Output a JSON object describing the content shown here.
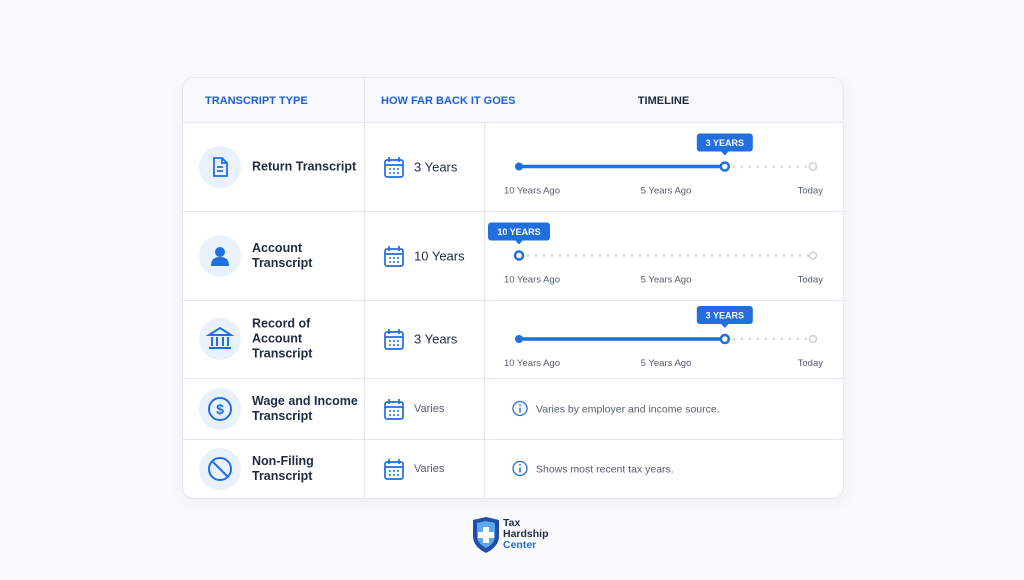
{
  "header": {
    "columns": [
      "TRANSCRIPT TYPE",
      "HOW FAR BACK IT GOES",
      "TIMELINE"
    ]
  },
  "timeline_scale": {
    "ticks": [
      {
        "value": 10,
        "label": "10 Years Ago"
      },
      {
        "value": 5,
        "label": "5 Years Ago"
      },
      {
        "value": 0,
        "label": "Today"
      }
    ]
  },
  "rows": [
    {
      "type": "Return Transcript",
      "period": "3 Years",
      "timeline": {
        "years": 3,
        "value_label": "3 YEARS"
      }
    },
    {
      "type": "Account Transcript",
      "period": "10 Years",
      "timeline": {
        "years": 10,
        "value_label": "10 YEARS"
      }
    },
    {
      "type": "Record of Account Transcript",
      "period": "3 Years",
      "timeline": {
        "years": 3,
        "value_label": "3 YEARS"
      }
    },
    {
      "type": "Wage and Income Transcript",
      "period": "Varies",
      "note": "Varies by employer and income source."
    },
    {
      "type": "Non-Filing Transcript",
      "period": "Varies",
      "note": "Shows most recent tax years."
    }
  ],
  "logo": {
    "lines": [
      "Tax",
      "Hardship",
      "Center"
    ]
  }
}
